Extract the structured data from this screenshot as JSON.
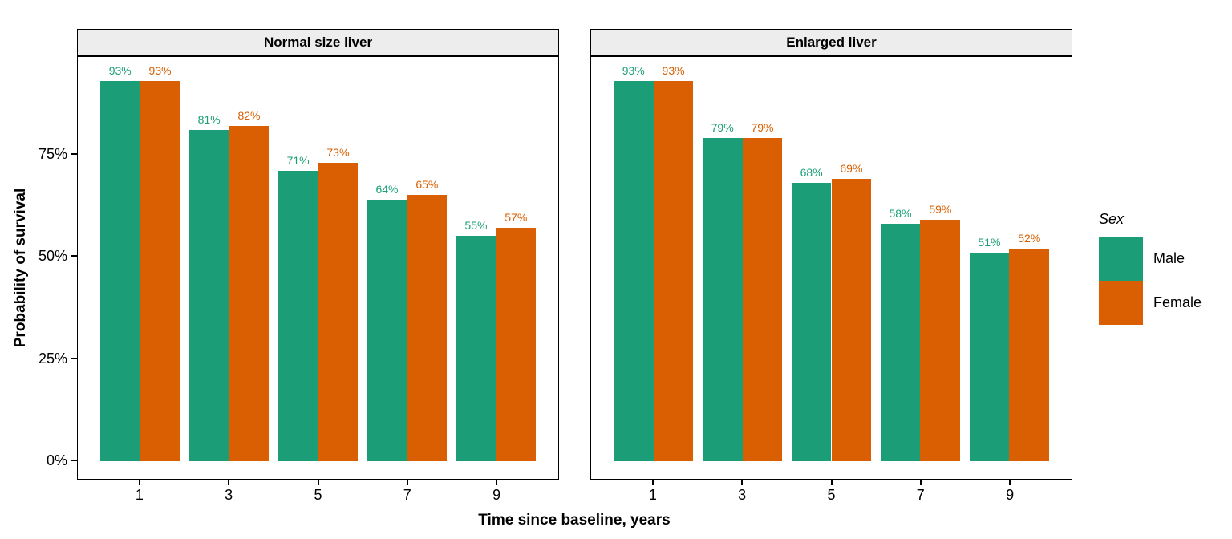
{
  "chart_data": {
    "type": "bar",
    "title": "",
    "xlabel": "Time since baseline, years",
    "ylabel": "Probability of survival",
    "unit": "%",
    "grid": false,
    "legend_position": "right",
    "ylim": [
      0,
      100
    ],
    "x": [
      1,
      3,
      5,
      7,
      9
    ],
    "x_tick_labels": [
      "1",
      "3",
      "5",
      "7",
      "9"
    ],
    "y_ticks": [
      {
        "value": 0,
        "label": "0%"
      },
      {
        "value": 25,
        "label": "25%"
      },
      {
        "value": 50,
        "label": "50%"
      },
      {
        "value": 75,
        "label": "75%"
      }
    ],
    "facets": [
      {
        "title": "Normal size liver",
        "series": [
          {
            "name": "Male",
            "color": "#1B9E77",
            "values": [
              93,
              81,
              71,
              64,
              55
            ],
            "labels": [
              "93%",
              "81%",
              "71%",
              "64%",
              "55%"
            ]
          },
          {
            "name": "Female",
            "color": "#D95F02",
            "values": [
              93,
              82,
              73,
              65,
              57
            ],
            "labels": [
              "93%",
              "82%",
              "73%",
              "65%",
              "57%"
            ]
          }
        ]
      },
      {
        "title": "Enlarged liver",
        "series": [
          {
            "name": "Male",
            "color": "#1B9E77",
            "values": [
              93,
              79,
              68,
              58,
              51
            ],
            "labels": [
              "93%",
              "79%",
              "68%",
              "58%",
              "51%"
            ]
          },
          {
            "name": "Female",
            "color": "#D95F02",
            "values": [
              93,
              79,
              69,
              59,
              52
            ],
            "labels": [
              "93%",
              "79%",
              "69%",
              "59%",
              "52%"
            ]
          }
        ]
      }
    ],
    "legend": {
      "title": "Sex",
      "items": [
        {
          "label": "Male",
          "color": "#1B9E77"
        },
        {
          "label": "Female",
          "color": "#D95F02"
        }
      ]
    }
  }
}
